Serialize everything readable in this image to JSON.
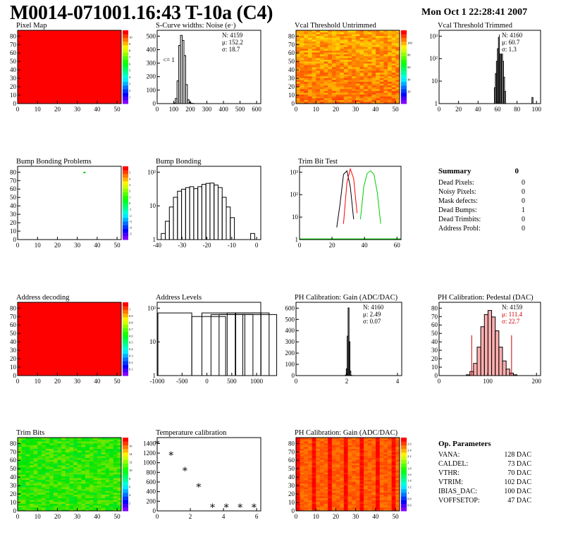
{
  "header": {
    "title": "M0014-071001.16:43 T-10a (C4)",
    "date": "Mon Oct  1 22:28:41 2007"
  },
  "colors": {
    "red": "#ff0000",
    "black": "#000000",
    "green": "#00cc00"
  },
  "chart_data": [
    {
      "id": "pixel-map",
      "type": "heatmap",
      "title": "Pixel Map",
      "x_ticks": [
        "0",
        "10",
        "20",
        "30",
        "40",
        "50"
      ],
      "y_ticks": [
        "0",
        "10",
        "20",
        "30",
        "40",
        "50",
        "60",
        "70",
        "80"
      ],
      "xlim": [
        0,
        52
      ],
      "ylim": [
        0,
        80
      ],
      "fill": "uniform red (all pixels responding)",
      "colorbar_ticks": [
        "1",
        "2",
        "3",
        "4",
        "5",
        "6",
        "7",
        "8",
        "9",
        "10"
      ]
    },
    {
      "id": "scurve-widths",
      "type": "bar",
      "title": "S-Curve widths: Noise (e·)",
      "x_ticks": [
        "0",
        "100",
        "200",
        "300",
        "400",
        "500",
        "600"
      ],
      "y_ticks": [
        "0",
        "100",
        "200",
        "300",
        "400",
        "500"
      ],
      "xlim": [
        0,
        600
      ],
      "ylim": [
        0,
        580
      ],
      "stats": {
        "n": "N: 4159",
        "mean": "μ: 152.2",
        "sigma": "σ: 18.7"
      },
      "annotation": "<= 1",
      "x": [
        100,
        110,
        120,
        130,
        140,
        150,
        160,
        170,
        180,
        190,
        200,
        210
      ],
      "values": [
        5,
        40,
        180,
        460,
        540,
        500,
        380,
        150,
        30,
        8,
        2,
        1
      ]
    },
    {
      "id": "vcal-untrimmed",
      "type": "heatmap",
      "title": "Vcal Threshold Untrimmed",
      "x_ticks": [
        "0",
        "10",
        "20",
        "30",
        "40",
        "50"
      ],
      "y_ticks": [
        "0",
        "10",
        "20",
        "30",
        "40",
        "50",
        "60",
        "70",
        "80"
      ],
      "xlim": [
        0,
        52
      ],
      "ylim": [
        0,
        80
      ],
      "colorbar_ticks": [
        "20",
        "40",
        "60",
        "80",
        "100"
      ]
    },
    {
      "id": "vcal-trimmed",
      "type": "bar",
      "title": "Vcal Threshold Trimmed",
      "x_ticks": [
        "0",
        "20",
        "40",
        "60",
        "80",
        "100"
      ],
      "y_ticks": [
        "1",
        "10",
        "10²",
        "10³"
      ],
      "xlim": [
        0,
        100
      ],
      "log_y": true,
      "stats": {
        "n": "N: 4160",
        "mean": "μ: 60.7",
        "sigma": "σ:  1.3"
      },
      "x": [
        55,
        56,
        57,
        58,
        59,
        60,
        61,
        62,
        63,
        64,
        65,
        92
      ],
      "values": [
        3,
        15,
        60,
        250,
        900,
        1200,
        800,
        300,
        60,
        10,
        2,
        1
      ]
    },
    {
      "id": "bump-bonding-problems",
      "type": "heatmap",
      "title": "Bump Bonding Problems",
      "x_ticks": [
        "0",
        "10",
        "20",
        "30",
        "40",
        "50"
      ],
      "y_ticks": [
        "0",
        "10",
        "20",
        "30",
        "40",
        "50",
        "60",
        "70",
        "80"
      ],
      "xlim": [
        0,
        52
      ],
      "ylim": [
        0,
        80
      ],
      "colorbar_ticks": [
        "-5",
        "-4",
        "-3",
        "-2",
        "-1",
        "0",
        "1",
        "2",
        "3",
        "4",
        "5"
      ],
      "hits": [
        {
          "x": 33,
          "y": 74
        }
      ]
    },
    {
      "id": "bump-bonding",
      "type": "bar",
      "title": "Bump Bonding",
      "x_ticks": [
        "-40",
        "-30",
        "-20",
        "-10",
        "0"
      ],
      "y_ticks": [
        "1",
        "10",
        "10²"
      ],
      "xlim": [
        -47,
        4
      ],
      "log_y": true,
      "x": [
        -44,
        -42,
        -40,
        -38,
        -36,
        -34,
        -32,
        -30,
        -28,
        -26,
        -24,
        -22,
        -20,
        -18,
        -16,
        -14,
        -12,
        -10,
        -8,
        -6,
        -4,
        -2,
        0
      ],
      "values": [
        1,
        4,
        20,
        60,
        120,
        150,
        180,
        200,
        160,
        200,
        260,
        290,
        300,
        240,
        180,
        60,
        20,
        6,
        0,
        0,
        0,
        0,
        1
      ]
    },
    {
      "id": "trim-bit-test",
      "type": "line",
      "title": "Trim Bit Test",
      "x_ticks": [
        "0",
        "20",
        "40",
        "60"
      ],
      "y_ticks": [
        "1",
        "10",
        "10²",
        "10³"
      ],
      "xlim": [
        0,
        60
      ],
      "log_y": true,
      "series": [
        {
          "color": "black",
          "x": [
            22,
            24,
            26,
            28,
            30,
            32
          ],
          "values": [
            2,
            30,
            800,
            1200,
            200,
            5
          ]
        },
        {
          "color": "red",
          "x": [
            26,
            28,
            30,
            32,
            34
          ],
          "values": [
            3,
            300,
            1500,
            500,
            10
          ]
        },
        {
          "color": "green",
          "x": [
            36,
            38,
            40,
            42,
            44,
            46,
            48
          ],
          "values": [
            5,
            200,
            900,
            1200,
            800,
            100,
            3
          ]
        }
      ]
    },
    {
      "id": "address-decoding",
      "type": "heatmap",
      "title": "Address decoding",
      "x_ticks": [
        "0",
        "10",
        "20",
        "30",
        "40",
        "50"
      ],
      "y_ticks": [
        "0",
        "10",
        "20",
        "30",
        "40",
        "50",
        "60",
        "70",
        "80"
      ],
      "xlim": [
        0,
        52
      ],
      "ylim": [
        0,
        80
      ],
      "fill": "uniform red",
      "colorbar_ticks": [
        "0.1",
        "0.2",
        "0.3",
        "0.4",
        "0.5",
        "0.6",
        "0.7",
        "0.8",
        "0.9",
        "1"
      ]
    },
    {
      "id": "address-levels",
      "type": "bar",
      "title": "Address Levels",
      "x_ticks": [
        "-1000",
        "-500",
        "0",
        "500",
        "1000"
      ],
      "y_ticks": [
        "1",
        "10",
        "10²"
      ],
      "xlim": [
        -1050,
        1000
      ],
      "log_y": true,
      "x": [
        -700,
        -30,
        170,
        350,
        510,
        670,
        830,
        980
      ],
      "values": [
        600,
        400,
        600,
        500,
        500,
        600,
        600,
        500
      ]
    },
    {
      "id": "ph-gain",
      "type": "bar",
      "title": "PH Calibration: Gain (ADC/DAC)",
      "x_ticks": [
        "0",
        "2",
        "4"
      ],
      "y_ticks": [
        "0",
        "100",
        "200",
        "300",
        "400",
        "500",
        "600"
      ],
      "xlim": [
        -1,
        6
      ],
      "ylim": [
        0,
        650
      ],
      "stats": {
        "n": "N: 4160",
        "mean": "μ: 2.49",
        "sigma": "σ: 0.07"
      },
      "x": [
        2.3,
        2.36,
        2.42,
        2.48,
        2.54,
        2.6,
        2.66
      ],
      "values": [
        5,
        60,
        350,
        600,
        300,
        40,
        3
      ]
    },
    {
      "id": "ph-pedestal",
      "type": "bar",
      "title": "PH Calibration: Pedestal (DAC)",
      "x_ticks": [
        "0",
        "100",
        "200"
      ],
      "y_ticks": [
        "0",
        "10",
        "20",
        "30",
        "40",
        "50",
        "60",
        "70",
        "80"
      ],
      "xlim": [
        -30,
        250
      ],
      "ylim": [
        0,
        90
      ],
      "stats": {
        "n": "N: 4159",
        "mean": "μ: 111.4",
        "sigma": "σ: 22.7"
      },
      "x": [
        50,
        60,
        70,
        80,
        90,
        100,
        110,
        120,
        130,
        140,
        150,
        160,
        170,
        180,
        190
      ],
      "values": [
        1,
        5,
        15,
        35,
        60,
        75,
        80,
        72,
        55,
        35,
        18,
        8,
        3,
        1,
        0
      ]
    },
    {
      "id": "trim-bits",
      "type": "heatmap",
      "title": "Trim Bits",
      "x_ticks": [
        "0",
        "10",
        "20",
        "30",
        "40",
        "50"
      ],
      "y_ticks": [
        "0",
        "10",
        "20",
        "30",
        "40",
        "50",
        "60",
        "70",
        "80"
      ],
      "xlim": [
        0,
        52
      ],
      "ylim": [
        0,
        80
      ],
      "colorbar_ticks": [
        "2",
        "4",
        "6",
        "8",
        "10",
        "12",
        "14",
        "16"
      ]
    },
    {
      "id": "temperature-calibration",
      "type": "scatter",
      "title": "Temperature calibration",
      "x_ticks": [
        "0",
        "2",
        "4",
        "6"
      ],
      "y_ticks": [
        "0",
        "200",
        "400",
        "600",
        "800",
        "1000",
        "1200",
        "1400"
      ],
      "xlim": [
        0,
        7.5
      ],
      "ylim": [
        0,
        1500
      ],
      "x": [
        0,
        1,
        2,
        3,
        4,
        5,
        6,
        7
      ],
      "values": [
        1400,
        1170,
        850,
        520,
        100,
        100,
        100,
        100
      ]
    },
    {
      "id": "ph-gain-map",
      "type": "heatmap",
      "title": "PH Calibration: Gain (ADC/DAC)",
      "x_ticks": [
        "0",
        "10",
        "20",
        "30",
        "40",
        "50"
      ],
      "y_ticks": [
        "0",
        "10",
        "20",
        "30",
        "40",
        "50",
        "60",
        "70",
        "80"
      ],
      "xlim": [
        0,
        52
      ],
      "ylim": [
        0,
        80
      ],
      "colorbar_ticks": [
        "0.6",
        "0.8",
        "1",
        "1.2",
        "1.4",
        "1.6",
        "1.8",
        "2",
        "2.2",
        "2.4",
        "2.6"
      ]
    }
  ],
  "summary": {
    "title": "Summary",
    "total": "0",
    "rows": [
      {
        "label": "Dead Pixels:",
        "value": "0"
      },
      {
        "label": "Noisy Pixels:",
        "value": "0"
      },
      {
        "label": "Mask defects:",
        "value": "0"
      },
      {
        "label": "Dead Bumps:",
        "value": "1"
      },
      {
        "label": "Dead Trimbits:",
        "value": "0"
      },
      {
        "label": "Address Probl:",
        "value": "0"
      }
    ]
  },
  "op_params": {
    "title": "Op. Parameters",
    "rows": [
      {
        "label": "VANA:",
        "value": "128 DAC"
      },
      {
        "label": "CALDEL:",
        "value": "73 DAC"
      },
      {
        "label": "VTHR:",
        "value": "70 DAC"
      },
      {
        "label": "VTRIM:",
        "value": "102 DAC"
      },
      {
        "label": "IBIAS_DAC:",
        "value": "100 DAC"
      },
      {
        "label": "VOFFSETOP:",
        "value": "47 DAC"
      }
    ]
  }
}
